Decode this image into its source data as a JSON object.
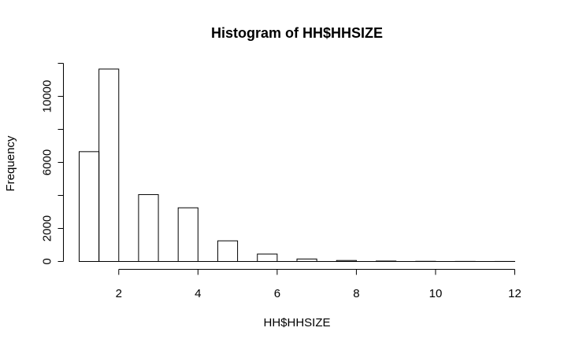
{
  "chart_data": {
    "type": "bar",
    "title": "Histogram of HH$HHSIZE",
    "xlabel": "HH$HHSIZE",
    "ylabel": "Frequency",
    "bins": [
      {
        "x0": 1.0,
        "x1": 1.5,
        "value": 6650
      },
      {
        "x0": 1.5,
        "x1": 2.0,
        "value": 11650
      },
      {
        "x0": 2.5,
        "x1": 3.0,
        "value": 4050
      },
      {
        "x0": 3.5,
        "x1": 4.0,
        "value": 3250
      },
      {
        "x0": 4.5,
        "x1": 5.0,
        "value": 1250
      },
      {
        "x0": 5.5,
        "x1": 6.0,
        "value": 450
      },
      {
        "x0": 6.5,
        "x1": 7.0,
        "value": 150
      },
      {
        "x0": 7.5,
        "x1": 8.0,
        "value": 60
      },
      {
        "x0": 8.5,
        "x1": 9.0,
        "value": 25
      },
      {
        "x0": 9.5,
        "x1": 10.0,
        "value": 10
      },
      {
        "x0": 10.5,
        "x1": 11.0,
        "value": 5
      },
      {
        "x0": 11.5,
        "x1": 12.0,
        "value": 3
      }
    ],
    "xlim": [
      1,
      12
    ],
    "ylim": [
      0,
      12000
    ],
    "xticks": [
      2,
      4,
      6,
      8,
      10,
      12
    ],
    "yticks": [
      0,
      2000,
      6000,
      10000
    ],
    "grid": false
  }
}
